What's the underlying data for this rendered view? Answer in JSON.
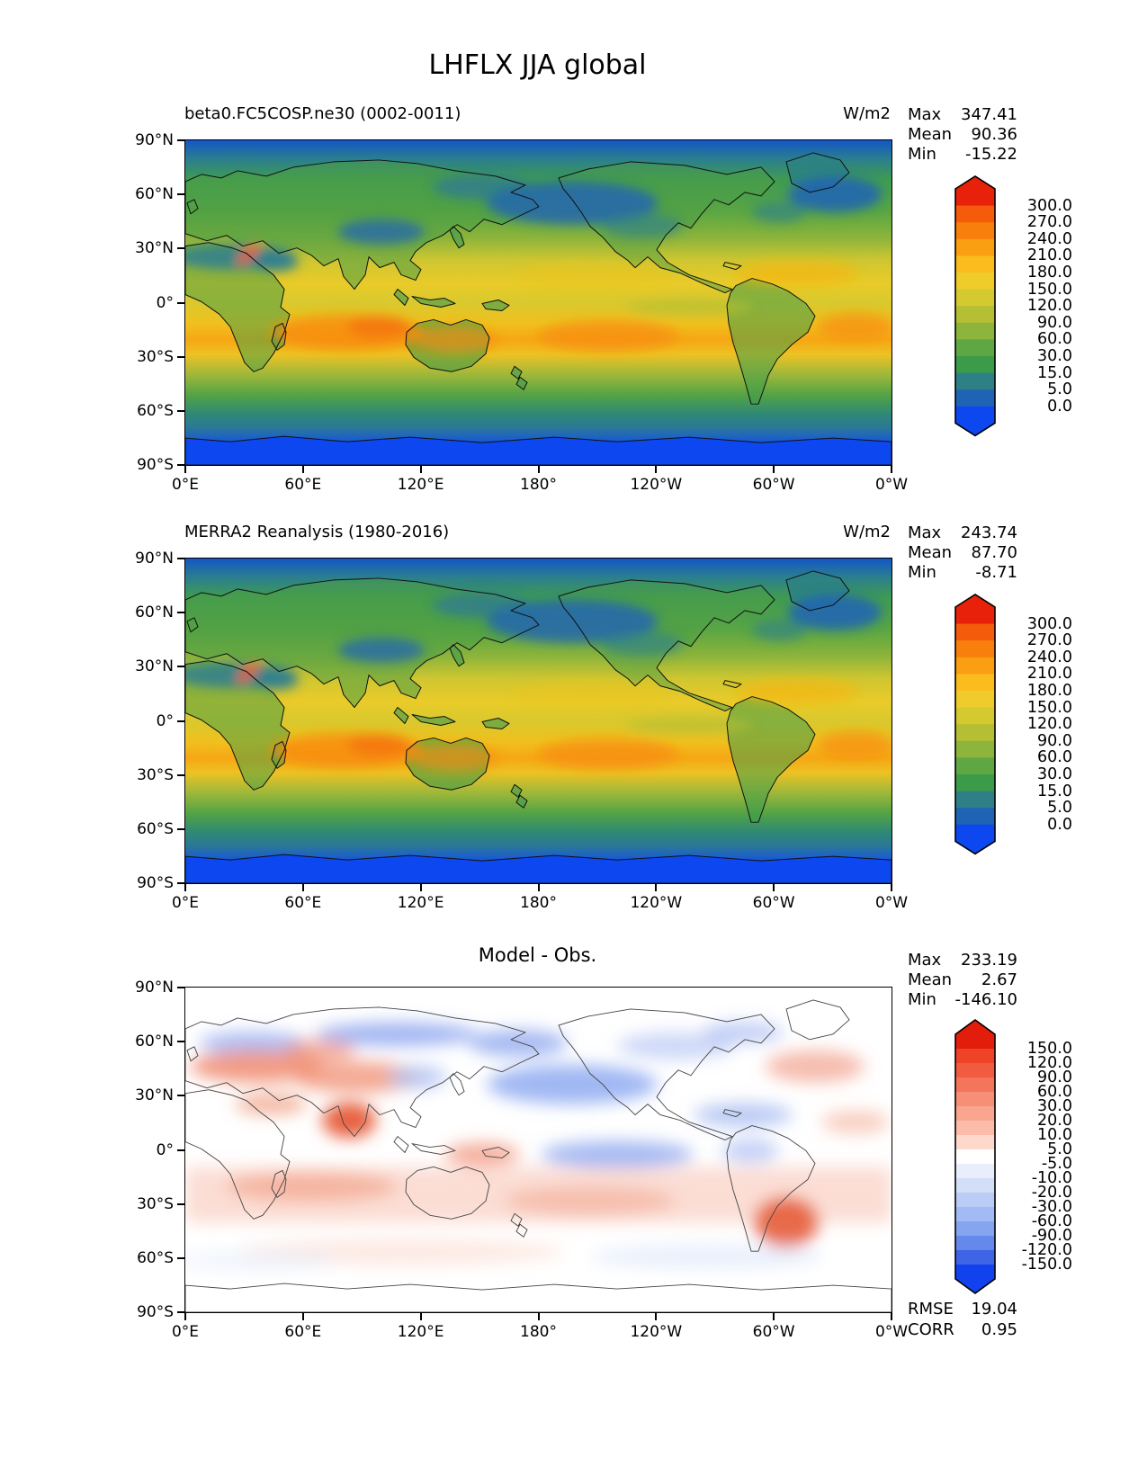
{
  "figure": {
    "title": "LHFLX JJA global"
  },
  "axes": {
    "x_ticks": [
      "0°E",
      "60°E",
      "120°E",
      "180°",
      "120°W",
      "60°W",
      "0°W"
    ],
    "y_ticks": [
      "90°N",
      "60°N",
      "30°N",
      "0°",
      "30°S",
      "60°S",
      "90°S"
    ]
  },
  "panels": [
    {
      "title": "beta0.FC5COSP.ne30 (0002-0011)",
      "units": "W/m2",
      "stats": [
        {
          "label": "Max",
          "value": "347.41"
        },
        {
          "label": "Mean",
          "value": "90.36"
        },
        {
          "label": "Min",
          "value": "-15.22"
        }
      ],
      "colorbar": {
        "tick_labels": [
          "300.0",
          "270.0",
          "240.0",
          "210.0",
          "180.0",
          "150.0",
          "120.0",
          "90.0",
          "60.0",
          "30.0",
          "15.0",
          "5.0",
          "0.0"
        ],
        "colors": [
          "#e8220a",
          "#f45c0b",
          "#f87f0c",
          "#fa9e12",
          "#fbbc1e",
          "#efcc2b",
          "#d5c930",
          "#b5bf34",
          "#8db43b",
          "#5fa743",
          "#3b9b49",
          "#2e8087",
          "#1f64b4",
          "#0d47f0"
        ]
      }
    },
    {
      "title": "MERRA2 Reanalysis (1980-2016)",
      "units": "W/m2",
      "stats": [
        {
          "label": "Max",
          "value": "243.74"
        },
        {
          "label": "Mean",
          "value": "87.70"
        },
        {
          "label": "Min",
          "value": "-8.71"
        }
      ],
      "colorbar": {
        "tick_labels": [
          "300.0",
          "270.0",
          "240.0",
          "210.0",
          "180.0",
          "150.0",
          "120.0",
          "90.0",
          "60.0",
          "30.0",
          "15.0",
          "5.0",
          "0.0"
        ],
        "colors": [
          "#e8220a",
          "#f45c0b",
          "#f87f0c",
          "#fa9e12",
          "#fbbc1e",
          "#efcc2b",
          "#d5c930",
          "#b5bf34",
          "#8db43b",
          "#5fa743",
          "#3b9b49",
          "#2e8087",
          "#1f64b4",
          "#0d47f0"
        ]
      }
    },
    {
      "title": "Model - Obs.",
      "units": "",
      "stats": [
        {
          "label": "Max",
          "value": "233.19"
        },
        {
          "label": "Mean",
          "value": "2.67"
        },
        {
          "label": "Min",
          "value": "-146.10"
        }
      ],
      "colorbar": {
        "tick_labels": [
          "150.0",
          "120.0",
          "90.0",
          "60.0",
          "30.0",
          "20.0",
          "10.0",
          "5.0",
          "-5.0",
          "-10.0",
          "-20.0",
          "-30.0",
          "-60.0",
          "-90.0",
          "-120.0",
          "-150.0"
        ],
        "colors": [
          "#e31d0c",
          "#ee4326",
          "#f15b40",
          "#f4755b",
          "#f78f76",
          "#f9a58f",
          "#fbbcaa",
          "#fdd8cb",
          "#ffffff",
          "#e8eefb",
          "#d3dff9",
          "#bbcdf7",
          "#a2bbf4",
          "#85a5f0",
          "#6488ec",
          "#3f64e6",
          "#1241ee"
        ]
      },
      "metrics": [
        {
          "label": "RMSE",
          "value": "19.04"
        },
        {
          "label": "CORR",
          "value": "0.95"
        }
      ]
    }
  ],
  "chart_data": [
    {
      "type": "heatmap",
      "title": "beta0.FC5COSP.ne30 (0002-0011)",
      "variable": "LHFLX",
      "season": "JJA",
      "region": "global",
      "units": "W/m2",
      "stats": {
        "max": 347.41,
        "mean": 90.36,
        "min": -15.22
      },
      "contour_levels": [
        0,
        5,
        15,
        30,
        60,
        90,
        120,
        150,
        180,
        210,
        240,
        270,
        300
      ],
      "x_ticks": [
        "0°E",
        "60°E",
        "120°E",
        "180°",
        "120°W",
        "60°W",
        "0°W"
      ],
      "y_ticks": [
        "90°N",
        "60°N",
        "30°N",
        "0°",
        "30°S",
        "60°S",
        "90°S"
      ],
      "projection": "cylindrical lat-lon, 0°E to 0°W, 90°N to 90°S"
    },
    {
      "type": "heatmap",
      "title": "MERRA2 Reanalysis (1980-2016)",
      "variable": "LHFLX",
      "season": "JJA",
      "region": "global",
      "units": "W/m2",
      "stats": {
        "max": 243.74,
        "mean": 87.7,
        "min": -8.71
      },
      "contour_levels": [
        0,
        5,
        15,
        30,
        60,
        90,
        120,
        150,
        180,
        210,
        240,
        270,
        300
      ],
      "x_ticks": [
        "0°E",
        "60°E",
        "120°E",
        "180°",
        "120°W",
        "60°W",
        "0°W"
      ],
      "y_ticks": [
        "90°N",
        "60°N",
        "30°N",
        "0°",
        "30°S",
        "60°S",
        "90°S"
      ]
    },
    {
      "type": "heatmap",
      "title": "Model - Obs.",
      "variable": "LHFLX difference",
      "stats": {
        "max": 233.19,
        "mean": 2.67,
        "min": -146.1,
        "rmse": 19.04,
        "corr": 0.95
      },
      "contour_levels": [
        -150,
        -120,
        -90,
        -60,
        -30,
        -20,
        -10,
        -5,
        5,
        10,
        20,
        30,
        60,
        90,
        120,
        150
      ],
      "x_ticks": [
        "0°E",
        "60°E",
        "120°E",
        "180°",
        "120°W",
        "60°W",
        "0°W"
      ],
      "y_ticks": [
        "90°N",
        "60°N",
        "30°N",
        "0°",
        "30°S",
        "60°S",
        "90°S"
      ]
    }
  ]
}
